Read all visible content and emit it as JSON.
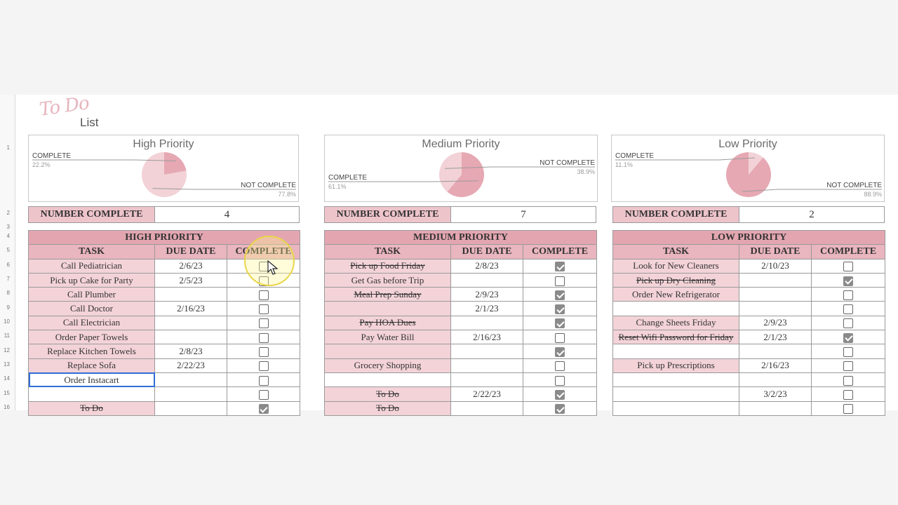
{
  "logo": {
    "script": "To Do",
    "word": "List"
  },
  "rows": [
    "1",
    "2",
    "3",
    "4",
    "5",
    "6",
    "7",
    "8",
    "9",
    "10",
    "11",
    "12",
    "13",
    "14",
    "15",
    "16"
  ],
  "charts": [
    {
      "title": "High Priority",
      "complete_label": "COMPLETE",
      "complete_pct": "22.2%",
      "not_label": "NOT COMPLETE",
      "not_pct": "77.8%",
      "complete_fraction": 0.222
    },
    {
      "title": "Medium Priority",
      "complete_label": "COMPLETE",
      "complete_pct": "61.1%",
      "not_label": "NOT COMPLETE",
      "not_pct": "38.9%",
      "complete_fraction": 0.611
    },
    {
      "title": "Low Priority",
      "complete_label": "COMPLETE",
      "complete_pct": "11.1%",
      "not_label": "NOT COMPLETE",
      "not_pct": "88.9%",
      "complete_fraction": 0.111
    }
  ],
  "counts": [
    {
      "label": "NUMBER COMPLETE",
      "value": "4"
    },
    {
      "label": "NUMBER COMPLETE",
      "value": "7"
    },
    {
      "label": "NUMBER COMPLETE",
      "value": "2"
    }
  ],
  "colors": {
    "pie_complete": "#e6a8b3",
    "pie_not_complete": "#f2d2d7",
    "header_pink": "#e9b5be",
    "task_pink": "#f3d3d8"
  },
  "tables": [
    {
      "title": "HIGH PRIORITY",
      "headers": [
        "TASK",
        "DUE DATE",
        "COMPLETE"
      ],
      "rows": [
        {
          "task": "Call Pediatrician",
          "due": "2/6/23",
          "complete": false
        },
        {
          "task": "Pick up Cake for Party",
          "due": "2/5/23",
          "complete": false
        },
        {
          "task": "Call Plumber",
          "due": "",
          "complete": false
        },
        {
          "task": "Call Doctor",
          "due": "2/16/23",
          "complete": false
        },
        {
          "task": "Call Electrician",
          "due": "",
          "complete": false
        },
        {
          "task": "Order Paper Towels",
          "due": "",
          "complete": false
        },
        {
          "task": "Replace Kitchen Towels",
          "due": "2/8/23",
          "complete": false
        },
        {
          "task": "Replace Sofa",
          "due": "2/22/23",
          "complete": false
        },
        {
          "task": "Order Instacart",
          "due": "",
          "complete": false,
          "selected": true
        },
        {
          "task": "",
          "due": "",
          "complete": false
        },
        {
          "task": "To Do",
          "due": "",
          "complete": true
        }
      ]
    },
    {
      "title": "MEDIUM PRIORITY",
      "headers": [
        "TASK",
        "DUE DATE",
        "COMPLETE"
      ],
      "rows": [
        {
          "task": "Pick up Food Friday",
          "due": "2/8/23",
          "complete": true
        },
        {
          "task": "Get Gas before Trip",
          "due": "",
          "complete": false
        },
        {
          "task": "Meal Prep Sunday",
          "due": "2/9/23",
          "complete": true
        },
        {
          "task": "",
          "due": "2/1/23",
          "complete": true,
          "pink": true
        },
        {
          "task": "Pay HOA Dues",
          "due": "",
          "complete": true
        },
        {
          "task": "Pay Water Bill",
          "due": "2/16/23",
          "complete": false
        },
        {
          "task": "",
          "due": "",
          "complete": true,
          "pink": true
        },
        {
          "task": "Grocery Shopping",
          "due": "",
          "complete": false
        },
        {
          "task": "",
          "due": "",
          "complete": false
        },
        {
          "task": "To Do",
          "due": "2/22/23",
          "complete": true
        },
        {
          "task": "To Do",
          "due": "",
          "complete": true
        }
      ]
    },
    {
      "title": "LOW PRIORITY",
      "headers": [
        "TASK",
        "DUE DATE",
        "COMPLETE"
      ],
      "rows": [
        {
          "task": "Look for New Cleaners",
          "due": "2/10/23",
          "complete": false
        },
        {
          "task": "Pick up Dry Cleaning",
          "due": "",
          "complete": true
        },
        {
          "task": "Order New Refrigerator",
          "due": "",
          "complete": false
        },
        {
          "task": "",
          "due": "",
          "complete": false
        },
        {
          "task": "Change Sheets Friday",
          "due": "2/9/23",
          "complete": false
        },
        {
          "task": "Reset Wifi Password for Friday",
          "due": "2/1/23",
          "complete": true
        },
        {
          "task": "",
          "due": "",
          "complete": false
        },
        {
          "task": "Pick up Prescriptions",
          "due": "2/16/23",
          "complete": false
        },
        {
          "task": "",
          "due": "",
          "complete": false
        },
        {
          "task": "",
          "due": "3/2/23",
          "complete": false
        },
        {
          "task": "",
          "due": "",
          "complete": false
        }
      ]
    }
  ]
}
